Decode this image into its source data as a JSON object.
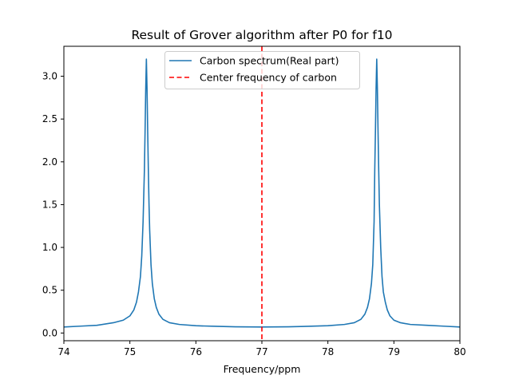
{
  "chart_data": {
    "type": "line",
    "title": "Result of Grover algorithm after P0 for f10",
    "xlabel": "Frequency/ppm",
    "ylabel": "",
    "xlim": [
      74,
      80
    ],
    "ylim": [
      -0.09,
      3.35
    ],
    "xticks": [
      74,
      75,
      76,
      77,
      78,
      79,
      80
    ],
    "xtick_labels": [
      "74",
      "75",
      "76",
      "77",
      "78",
      "79",
      "80"
    ],
    "yticks": [
      0.0,
      0.5,
      1.0,
      1.5,
      2.0,
      2.5,
      3.0
    ],
    "ytick_labels": [
      "0.0",
      "0.5",
      "1.0",
      "1.5",
      "2.0",
      "2.5",
      "3.0"
    ],
    "grid": false,
    "legend_position": "top-center",
    "series": [
      {
        "name": "Carbon spectrum(Real part)",
        "color": "#1f77b4",
        "style": "solid",
        "x": [
          74.0,
          74.25,
          74.5,
          74.75,
          74.9,
          75.0,
          75.06,
          75.1,
          75.13,
          75.16,
          75.18,
          75.2,
          75.22,
          75.23,
          75.24,
          75.25,
          75.26,
          75.27,
          75.28,
          75.29,
          75.3,
          75.32,
          75.34,
          75.37,
          75.4,
          75.44,
          75.5,
          75.6,
          75.75,
          76.0,
          76.3,
          76.6,
          77.0,
          77.4,
          77.7,
          78.0,
          78.25,
          78.4,
          78.5,
          78.56,
          78.6,
          78.63,
          78.66,
          78.68,
          78.7,
          78.71,
          78.72,
          78.73,
          78.74,
          78.75,
          78.76,
          78.77,
          78.78,
          78.8,
          78.82,
          78.84,
          78.87,
          78.9,
          78.94,
          79.0,
          79.1,
          79.25,
          79.5,
          79.75,
          80.0
        ],
        "y": [
          0.07,
          0.08,
          0.09,
          0.12,
          0.15,
          0.2,
          0.27,
          0.36,
          0.48,
          0.66,
          0.9,
          1.3,
          1.9,
          2.35,
          2.85,
          3.2,
          2.85,
          2.35,
          1.9,
          1.5,
          1.2,
          0.8,
          0.58,
          0.4,
          0.3,
          0.22,
          0.16,
          0.12,
          0.1,
          0.085,
          0.078,
          0.073,
          0.07,
          0.073,
          0.078,
          0.085,
          0.1,
          0.12,
          0.16,
          0.22,
          0.3,
          0.4,
          0.58,
          0.8,
          1.3,
          1.9,
          2.35,
          2.85,
          3.2,
          2.85,
          2.35,
          1.9,
          1.5,
          1.0,
          0.66,
          0.48,
          0.36,
          0.27,
          0.2,
          0.15,
          0.12,
          0.1,
          0.09,
          0.08,
          0.07
        ]
      },
      {
        "name": "Center frequency of carbon",
        "color": "#ff0000",
        "style": "dashed",
        "type": "vline",
        "x": 77.0
      }
    ]
  }
}
